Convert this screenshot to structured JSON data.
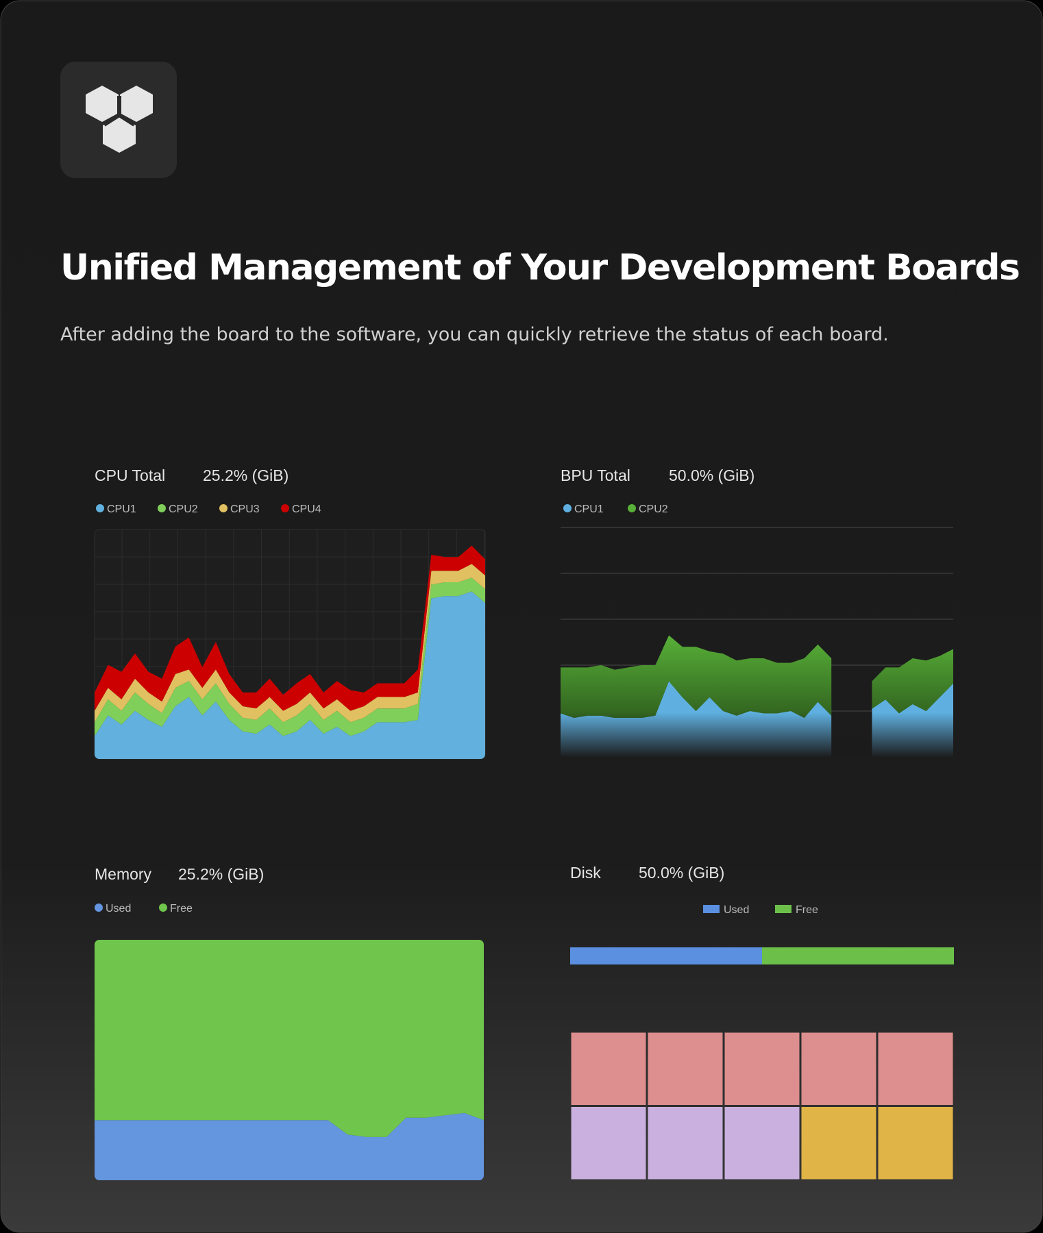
{
  "header": {
    "title": "Unified Management of Your Development Boards",
    "subtitle": "After adding the board to the software, you can quickly retrieve the status of each board."
  },
  "chart_data": [
    {
      "type": "area",
      "title": "CPU Total",
      "subtitle": "25.2% (GiB)",
      "ylim": [
        0,
        100
      ],
      "series": [
        {
          "name": "CPU1",
          "color": "#62b0dd",
          "values": [
            10,
            19,
            15,
            21,
            17,
            14,
            23,
            27,
            19,
            25,
            17,
            12,
            11,
            15,
            10,
            12,
            17,
            11,
            14,
            10,
            12,
            16,
            16,
            16,
            17,
            70,
            71,
            71,
            73,
            68
          ]
        },
        {
          "name": "CPU2",
          "color": "#7fcf5a",
          "values": [
            6,
            7,
            6,
            8,
            7,
            6,
            8,
            7,
            7,
            8,
            7,
            6,
            6,
            7,
            6,
            7,
            7,
            6,
            7,
            6,
            6,
            6,
            6,
            6,
            7,
            6,
            6,
            6,
            6,
            6
          ]
        },
        {
          "name": "CPU3",
          "color": "#e0c060",
          "values": [
            5,
            5,
            5,
            6,
            5,
            5,
            6,
            5,
            5,
            6,
            5,
            5,
            5,
            5,
            5,
            5,
            5,
            5,
            5,
            5,
            5,
            5,
            5,
            5,
            5,
            6,
            5,
            5,
            6,
            6
          ]
        },
        {
          "name": "CPU4",
          "color": "#cc0000",
          "values": [
            8,
            10,
            12,
            11,
            9,
            10,
            12,
            14,
            9,
            12,
            8,
            6,
            7,
            8,
            7,
            9,
            8,
            7,
            8,
            9,
            6,
            6,
            6,
            6,
            10,
            7,
            6,
            6,
            8,
            7
          ]
        }
      ]
    },
    {
      "type": "area",
      "title": "BPU Total",
      "subtitle": "50.0% (GiB)",
      "ylim": [
        0,
        100
      ],
      "yticks": [
        0,
        20,
        40,
        60,
        80,
        100
      ],
      "grid": true,
      "series": [
        {
          "name": "CPU1",
          "color": "#5fb0e0",
          "values": [
            19,
            17,
            18,
            18,
            17,
            17,
            17,
            18,
            33,
            26,
            20,
            26,
            20,
            18,
            20,
            19,
            19,
            20,
            17,
            24,
            18,
            null,
            null,
            21,
            25,
            19,
            23,
            20,
            26,
            32
          ]
        },
        {
          "name": "CPU2",
          "color": "#58b038",
          "values": [
            20,
            22,
            21,
            22,
            21,
            22,
            23,
            22,
            20,
            22,
            28,
            20,
            25,
            24,
            23,
            24,
            22,
            21,
            26,
            25,
            25,
            null,
            null,
            12,
            14,
            20,
            20,
            22,
            18,
            15
          ]
        }
      ]
    },
    {
      "type": "area",
      "title": "Memory",
      "subtitle": "25.2% (GiB)",
      "ylim": [
        0,
        100
      ],
      "series": [
        {
          "name": "Used",
          "color": "#6495df",
          "values": [
            25,
            25,
            25,
            25,
            25,
            25,
            25,
            25,
            25,
            25,
            25,
            25,
            25,
            19,
            18,
            18,
            26,
            26,
            27,
            28,
            25
          ]
        },
        {
          "name": "Free",
          "color": "#70c54c",
          "values": [
            75,
            75,
            75,
            75,
            75,
            75,
            75,
            75,
            75,
            75,
            75,
            75,
            75,
            81,
            82,
            82,
            74,
            74,
            73,
            72,
            75
          ]
        }
      ]
    },
    {
      "type": "hbar",
      "title": "Disk",
      "subtitle": "50.0% (GiB)",
      "xlim": [
        0,
        100
      ],
      "series": [
        {
          "name": "Used",
          "color": "#5b8fe0",
          "values": [
            50
          ]
        },
        {
          "name": "Free",
          "color": "#6cc04a",
          "values": [
            50
          ]
        }
      ],
      "blocks": [
        {
          "value": 1,
          "color": "#dd8e8e"
        },
        {
          "value": 1,
          "color": "#dd8e8e"
        },
        {
          "value": 1,
          "color": "#dd8e8e"
        },
        {
          "value": 1,
          "color": "#dd8e8e"
        },
        {
          "value": 1,
          "color": "#dd8e8e"
        },
        {
          "value": 1,
          "color": "#cab0de"
        },
        {
          "value": 1,
          "color": "#cab0de"
        },
        {
          "value": 1,
          "color": "#cab0de"
        },
        {
          "value": 1,
          "color": "#e0b446"
        },
        {
          "value": 1,
          "color": "#e0b446"
        }
      ]
    }
  ]
}
